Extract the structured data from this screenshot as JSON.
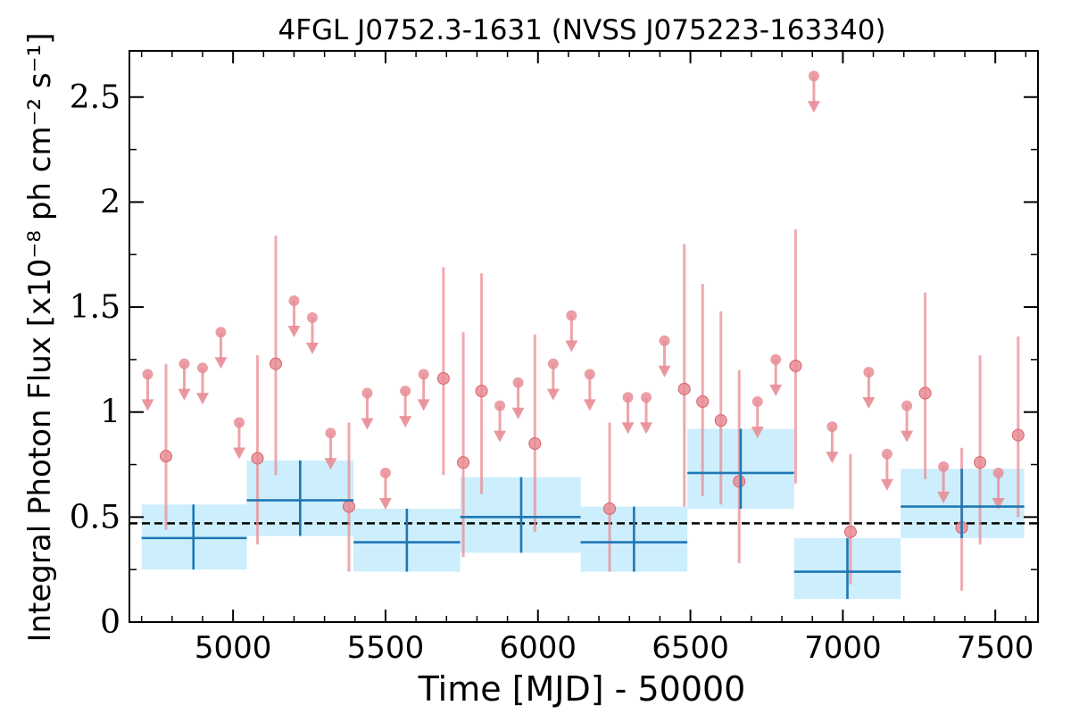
{
  "chart_data": {
    "type": "scatter",
    "title": "4FGL J0752.3-1631 (NVSS J075223-163340)",
    "xlabel": "Time [MJD] - 50000",
    "ylabel": "Integral Photon Flux [x10⁻⁸ ph cm⁻² s⁻¹]",
    "xlim": [
      4660,
      7640
    ],
    "ylim": [
      0,
      2.72
    ],
    "xticks": [
      5000,
      5500,
      6000,
      6500,
      7000,
      7500
    ],
    "xtick_labels": [
      "5000",
      "5500",
      "6000",
      "6500",
      "7000",
      "7500"
    ],
    "yticks": [
      0,
      0.5,
      1,
      1.5,
      2,
      2.5
    ],
    "ytick_labels": [
      "0",
      "0.5",
      "1",
      "1.5",
      "2",
      "2.5"
    ],
    "mean_flux": 0.47,
    "colors": {
      "short_bins": "#e88d95",
      "long_bins_line": "#1f77b4",
      "long_bins_band": "#cdeefc",
      "mean_line": "#000000"
    },
    "series": [
      {
        "name": "",
        "kind": "short-bin detections",
        "points": [
          {
            "x": 4780,
            "y": 0.79,
            "ylo": 0.44,
            "yhi": 1.23
          },
          {
            "x": 5080,
            "y": 0.78,
            "ylo": 0.37,
            "yhi": 1.27
          },
          {
            "x": 5140,
            "y": 1.23,
            "ylo": 0.7,
            "yhi": 1.84
          },
          {
            "x": 5380,
            "y": 0.55,
            "ylo": 0.24,
            "yhi": 0.95
          },
          {
            "x": 5690,
            "y": 1.16,
            "ylo": 0.7,
            "yhi": 1.69
          },
          {
            "x": 5755,
            "y": 0.76,
            "ylo": 0.31,
            "yhi": 1.38
          },
          {
            "x": 5815,
            "y": 1.1,
            "ylo": 0.61,
            "yhi": 1.66
          },
          {
            "x": 5990,
            "y": 0.85,
            "ylo": 0.43,
            "yhi": 1.37
          },
          {
            "x": 6235,
            "y": 0.54,
            "ylo": 0.24,
            "yhi": 0.95
          },
          {
            "x": 6480,
            "y": 1.11,
            "ylo": 0.55,
            "yhi": 1.8
          },
          {
            "x": 6540,
            "y": 1.05,
            "ylo": 0.6,
            "yhi": 1.61
          },
          {
            "x": 6600,
            "y": 0.96,
            "ylo": 0.56,
            "yhi": 1.48
          },
          {
            "x": 6660,
            "y": 0.67,
            "ylo": 0.28,
            "yhi": 1.2
          },
          {
            "x": 6845,
            "y": 1.22,
            "ylo": 0.66,
            "yhi": 1.87
          },
          {
            "x": 7025,
            "y": 0.43,
            "ylo": 0.18,
            "yhi": 0.8
          },
          {
            "x": 7270,
            "y": 1.09,
            "ylo": 0.68,
            "yhi": 1.57
          },
          {
            "x": 7390,
            "y": 0.45,
            "ylo": 0.15,
            "yhi": 0.83
          },
          {
            "x": 7450,
            "y": 0.76,
            "ylo": 0.37,
            "yhi": 1.27
          },
          {
            "x": 7575,
            "y": 0.89,
            "ylo": 0.5,
            "yhi": 1.36
          }
        ]
      },
      {
        "name": "",
        "kind": "short-bin upper limits",
        "points": [
          {
            "x": 4720,
            "y": 1.18
          },
          {
            "x": 4840,
            "y": 1.23
          },
          {
            "x": 4900,
            "y": 1.21
          },
          {
            "x": 4960,
            "y": 1.38
          },
          {
            "x": 5020,
            "y": 0.95
          },
          {
            "x": 5200,
            "y": 1.53
          },
          {
            "x": 5260,
            "y": 1.45
          },
          {
            "x": 5320,
            "y": 0.9
          },
          {
            "x": 5440,
            "y": 1.09
          },
          {
            "x": 5500,
            "y": 0.71
          },
          {
            "x": 5565,
            "y": 1.1
          },
          {
            "x": 5625,
            "y": 1.18
          },
          {
            "x": 5875,
            "y": 1.03
          },
          {
            "x": 5935,
            "y": 1.14
          },
          {
            "x": 6050,
            "y": 1.23
          },
          {
            "x": 6110,
            "y": 1.46
          },
          {
            "x": 6170,
            "y": 1.18
          },
          {
            "x": 6295,
            "y": 1.07
          },
          {
            "x": 6355,
            "y": 1.07
          },
          {
            "x": 6415,
            "y": 1.34
          },
          {
            "x": 6720,
            "y": 1.05
          },
          {
            "x": 6780,
            "y": 1.25
          },
          {
            "x": 6905,
            "y": 2.6
          },
          {
            "x": 6965,
            "y": 0.93
          },
          {
            "x": 7085,
            "y": 1.19
          },
          {
            "x": 7145,
            "y": 0.8
          },
          {
            "x": 7210,
            "y": 1.03
          },
          {
            "x": 7330,
            "y": 0.74
          },
          {
            "x": 7510,
            "y": 0.71
          }
        ]
      },
      {
        "name": "",
        "kind": "long-bin light curve",
        "bins": [
          {
            "x0": 4700,
            "x1": 5045,
            "x": 4870,
            "y": 0.4,
            "ylo": 0.25,
            "yhi": 0.56
          },
          {
            "x0": 5045,
            "x1": 5395,
            "x": 5220,
            "y": 0.58,
            "ylo": 0.41,
            "yhi": 0.77
          },
          {
            "x0": 5395,
            "x1": 5745,
            "x": 5570,
            "y": 0.38,
            "ylo": 0.24,
            "yhi": 0.54
          },
          {
            "x0": 5745,
            "x1": 6140,
            "x": 5945,
            "y": 0.5,
            "ylo": 0.33,
            "yhi": 0.69
          },
          {
            "x0": 6140,
            "x1": 6490,
            "x": 6315,
            "y": 0.38,
            "ylo": 0.24,
            "yhi": 0.55
          },
          {
            "x0": 6490,
            "x1": 6840,
            "x": 6665,
            "y": 0.71,
            "ylo": 0.54,
            "yhi": 0.92
          },
          {
            "x0": 6840,
            "x1": 7190,
            "x": 7015,
            "y": 0.24,
            "ylo": 0.11,
            "yhi": 0.4
          },
          {
            "x0": 7190,
            "x1": 7595,
            "x": 7390,
            "y": 0.55,
            "ylo": 0.4,
            "yhi": 0.73
          }
        ]
      }
    ]
  }
}
